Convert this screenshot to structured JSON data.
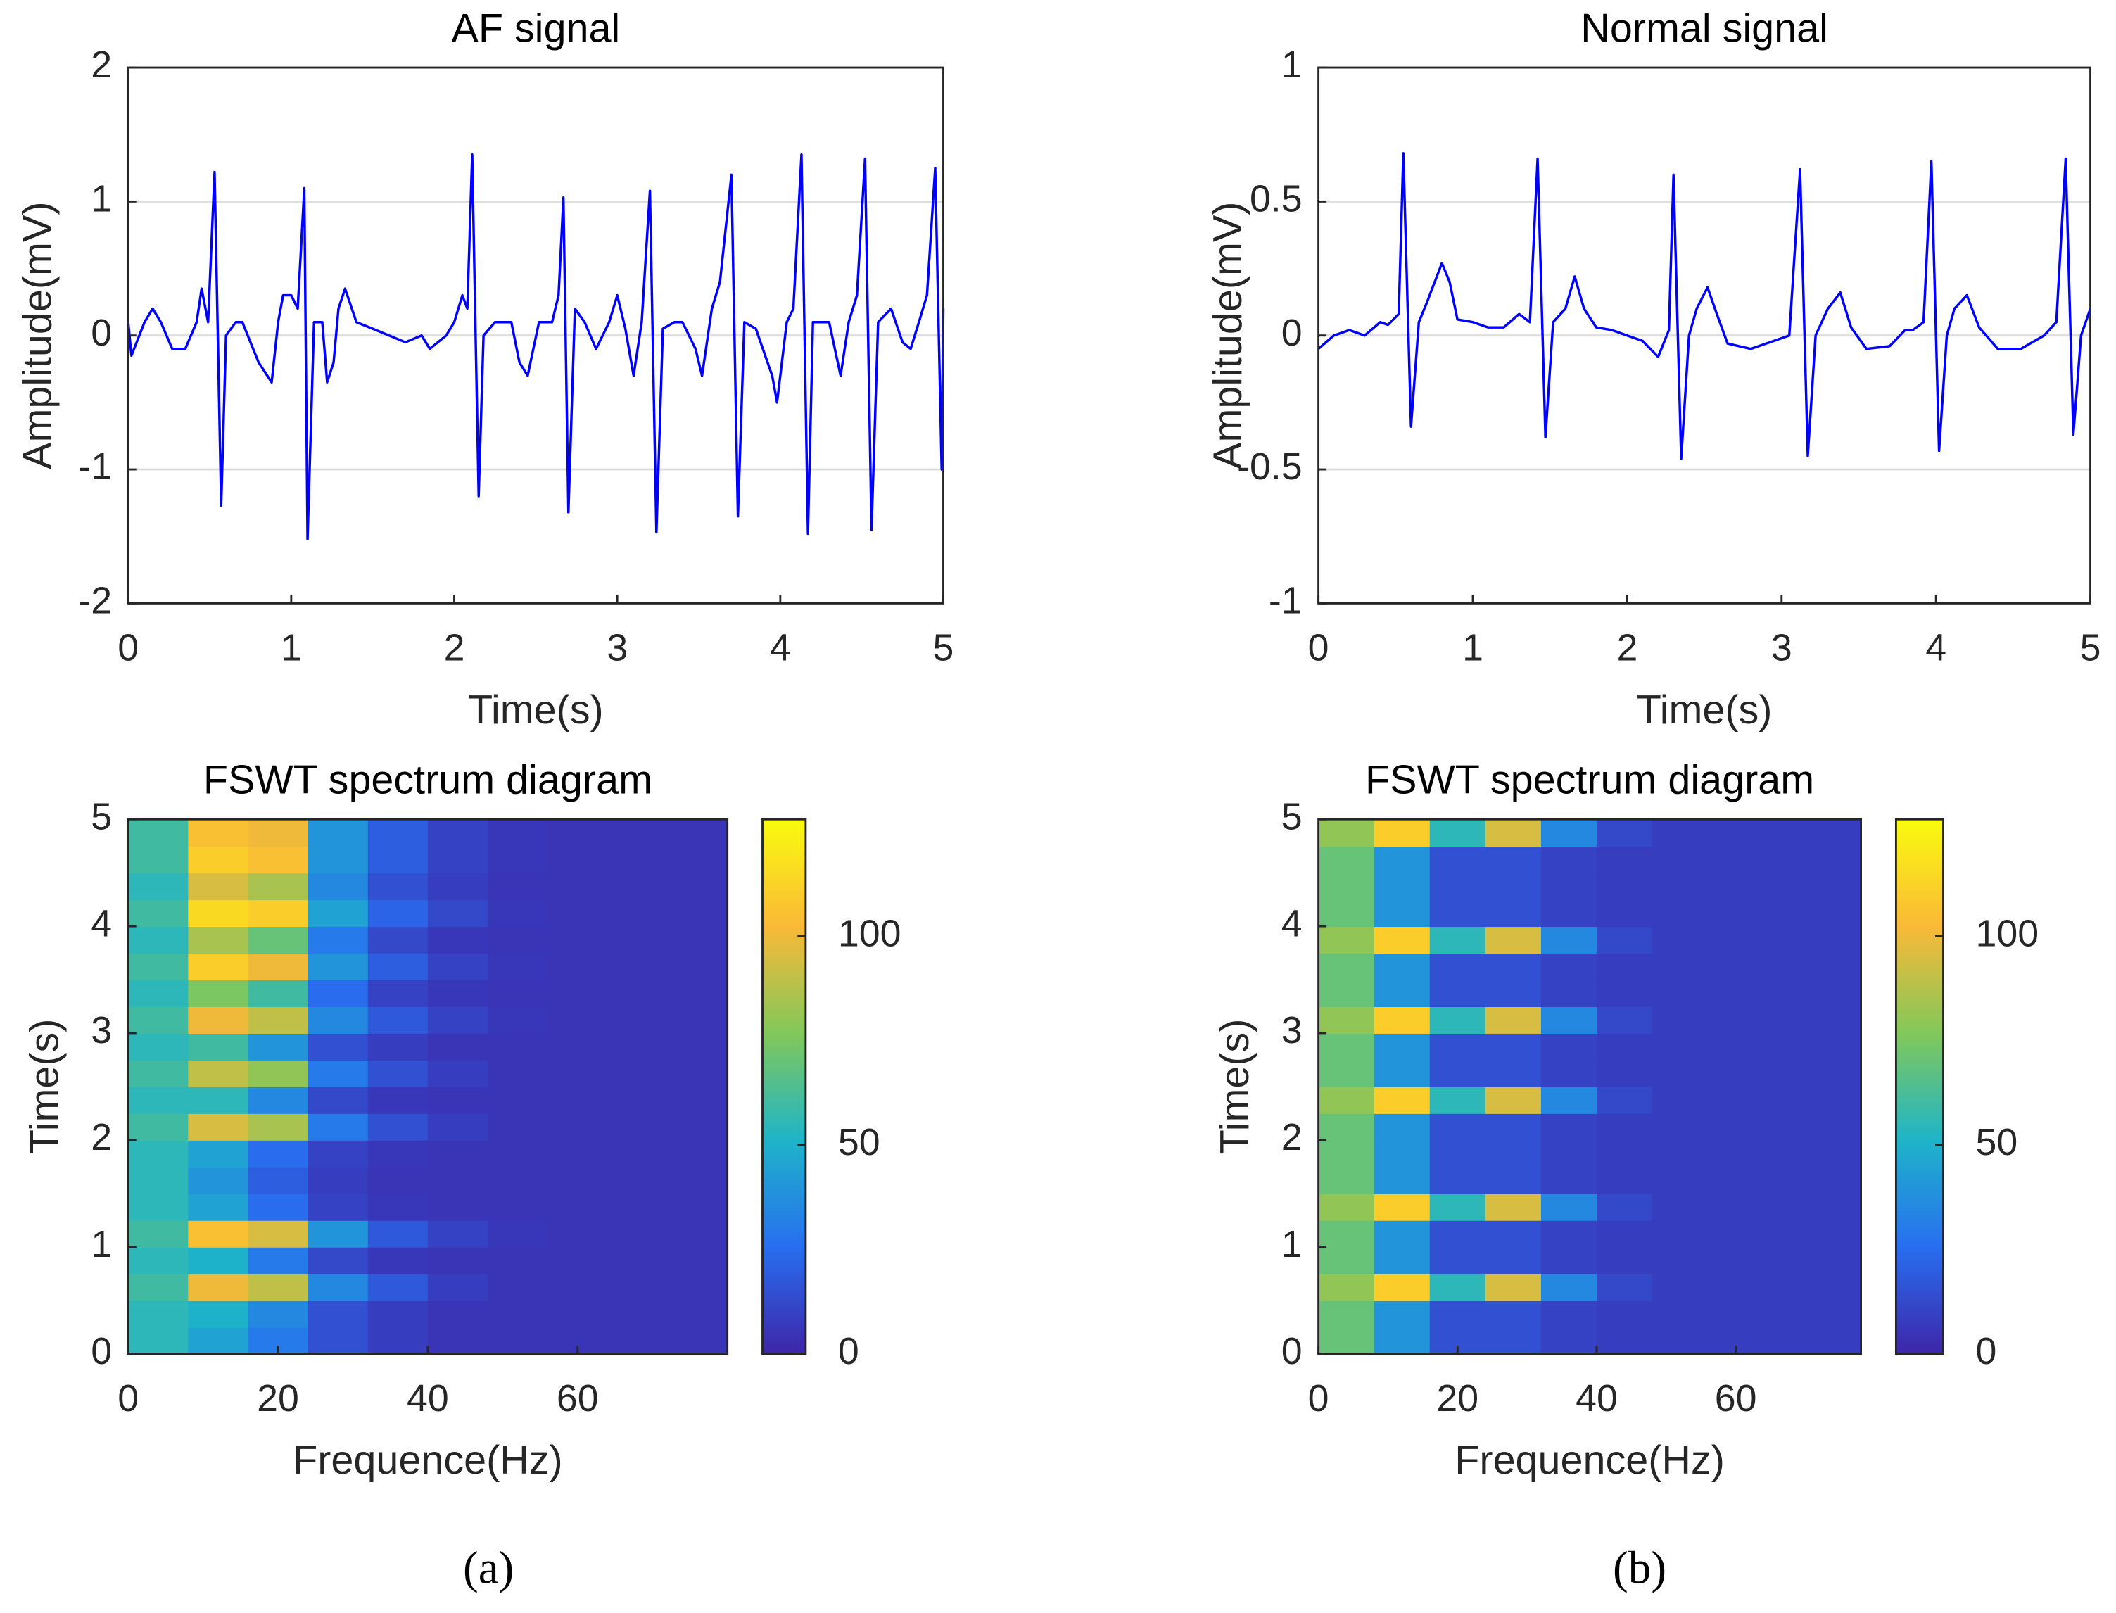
{
  "chart_data": [
    {
      "type": "line",
      "title": "AF signal",
      "xlabel": "Time(s)",
      "ylabel": "Amplitude(mV)",
      "x": [
        0,
        0.02,
        0.1,
        0.15,
        0.2,
        0.27,
        0.35,
        0.42,
        0.45,
        0.49,
        0.53,
        0.57,
        0.6,
        0.66,
        0.7,
        0.8,
        0.88,
        0.92,
        0.95,
        1.0,
        1.04,
        1.08,
        1.1,
        1.14,
        1.19,
        1.22,
        1.26,
        1.29,
        1.33,
        1.4,
        1.5,
        1.6,
        1.7,
        1.8,
        1.85,
        1.95,
        2.0,
        2.05,
        2.08,
        2.11,
        2.15,
        2.18,
        2.25,
        2.35,
        2.4,
        2.45,
        2.52,
        2.6,
        2.64,
        2.67,
        2.7,
        2.74,
        2.8,
        2.87,
        2.95,
        3.0,
        3.05,
        3.1,
        3.15,
        3.2,
        3.24,
        3.28,
        3.35,
        3.4,
        3.48,
        3.52,
        3.58,
        3.63,
        3.7,
        3.74,
        3.78,
        3.85,
        3.95,
        3.98,
        4.04,
        4.08,
        4.13,
        4.17,
        4.2,
        4.3,
        4.37,
        4.42,
        4.47,
        4.52,
        4.56,
        4.6,
        4.68,
        4.75,
        4.8,
        4.85,
        4.9,
        4.95,
        4.99,
        5.0
      ],
      "series": [
        {
          "color": "#0000ff",
          "values": [
            0.1,
            -0.15,
            0.1,
            0.2,
            0.1,
            -0.1,
            -0.1,
            0.1,
            0.35,
            0.1,
            1.22,
            -1.27,
            0,
            0.1,
            0.1,
            -0.2,
            -0.35,
            0.1,
            0.3,
            0.3,
            0.2,
            1.1,
            -1.52,
            0.1,
            0.1,
            -0.35,
            -0.2,
            0.2,
            0.35,
            0.1,
            0.05,
            0,
            -0.05,
            0,
            -0.1,
            0,
            0.1,
            0.3,
            0.2,
            1.35,
            -1.2,
            0,
            0.1,
            0.1,
            -0.2,
            -0.3,
            0.1,
            0.1,
            0.3,
            1.03,
            -1.32,
            0.2,
            0.1,
            -0.1,
            0.1,
            0.3,
            0.05,
            -0.3,
            0.1,
            1.08,
            -1.47,
            0.05,
            0.1,
            0.1,
            -0.1,
            -0.3,
            0.2,
            0.4,
            1.2,
            -1.35,
            0.1,
            0.05,
            -0.3,
            -0.5,
            0.1,
            0.2,
            1.35,
            -1.48,
            0.1,
            0.1,
            -0.3,
            0.1,
            0.3,
            1.32,
            -1.45,
            0.1,
            0.2,
            -0.05,
            -0.1,
            0.1,
            0.3,
            1.25,
            -1.0,
            0.2
          ]
        }
      ],
      "xlim": [
        0,
        5
      ],
      "ylim": [
        -2,
        2
      ],
      "xticks": [
        0,
        1,
        2,
        3,
        4,
        5
      ],
      "yticks": [
        -2,
        -1,
        0,
        1,
        2
      ],
      "grid": true
    },
    {
      "type": "line",
      "title": "Normal signal",
      "xlabel": "Time(s)",
      "ylabel": "Amplitude(mV)",
      "x": [
        0,
        0.1,
        0.2,
        0.3,
        0.4,
        0.45,
        0.52,
        0.55,
        0.6,
        0.65,
        0.7,
        0.8,
        0.85,
        0.9,
        1.0,
        1.1,
        1.2,
        1.3,
        1.37,
        1.42,
        1.47,
        1.52,
        1.6,
        1.66,
        1.72,
        1.8,
        1.9,
        2.0,
        2.1,
        2.2,
        2.27,
        2.3,
        2.35,
        2.4,
        2.45,
        2.52,
        2.58,
        2.65,
        2.8,
        2.95,
        3.05,
        3.12,
        3.17,
        3.22,
        3.3,
        3.38,
        3.45,
        3.55,
        3.7,
        3.8,
        3.85,
        3.92,
        3.97,
        4.02,
        4.07,
        4.12,
        4.2,
        4.28,
        4.4,
        4.55,
        4.7,
        4.78,
        4.84,
        4.89,
        4.94,
        5.0
      ],
      "series": [
        {
          "color": "#0000ff",
          "values": [
            -0.05,
            0,
            0.02,
            0,
            0.05,
            0.04,
            0.08,
            0.68,
            -0.34,
            0.05,
            0.12,
            0.27,
            0.2,
            0.06,
            0.05,
            0.03,
            0.03,
            0.08,
            0.05,
            0.66,
            -0.38,
            0.05,
            0.1,
            0.22,
            0.1,
            0.03,
            0.02,
            0,
            -0.02,
            -0.08,
            0.02,
            0.6,
            -0.46,
            0,
            0.1,
            0.18,
            0.08,
            -0.03,
            -0.05,
            -0.02,
            0,
            0.62,
            -0.45,
            0,
            0.1,
            0.16,
            0.03,
            -0.05,
            -0.04,
            0.02,
            0.02,
            0.05,
            0.65,
            -0.43,
            0,
            0.1,
            0.15,
            0.03,
            -0.05,
            -0.05,
            0,
            0.05,
            0.66,
            -0.37,
            0,
            0.1
          ]
        }
      ],
      "xlim": [
        0,
        5
      ],
      "ylim": [
        -1,
        1
      ],
      "xticks": [
        0,
        1,
        2,
        3,
        4,
        5
      ],
      "yticks": [
        -1,
        -0.5,
        0,
        0.5,
        1
      ],
      "grid": true
    },
    {
      "type": "heatmap",
      "title": "FSWT spectrum diagram",
      "xlabel": "Frequence(Hz)",
      "ylabel": "Time(s)",
      "x_edges": [
        0,
        8,
        16,
        24,
        32,
        40,
        48,
        56,
        64,
        72,
        80
      ],
      "y_edges": [
        0,
        0.25,
        0.5,
        0.75,
        1,
        1.25,
        1.5,
        1.75,
        2,
        2.25,
        2.5,
        2.75,
        3,
        3.25,
        3.5,
        3.75,
        4,
        4.25,
        4.5,
        4.75,
        5
      ],
      "z": [
        [
          55,
          45,
          30,
          15,
          8,
          5,
          5,
          5,
          5,
          5
        ],
        [
          55,
          50,
          35,
          15,
          8,
          5,
          5,
          5,
          5,
          5
        ],
        [
          60,
          100,
          90,
          35,
          18,
          8,
          5,
          5,
          5,
          5
        ],
        [
          55,
          50,
          30,
          12,
          6,
          5,
          5,
          5,
          5,
          5
        ],
        [
          60,
          105,
          95,
          40,
          18,
          10,
          6,
          5,
          5,
          5
        ],
        [
          55,
          45,
          25,
          10,
          6,
          5,
          5,
          5,
          5,
          5
        ],
        [
          55,
          40,
          20,
          8,
          5,
          5,
          5,
          5,
          5,
          5
        ],
        [
          55,
          45,
          25,
          10,
          6,
          5,
          5,
          5,
          5,
          5
        ],
        [
          60,
          95,
          85,
          30,
          15,
          8,
          5,
          5,
          5,
          5
        ],
        [
          55,
          55,
          35,
          12,
          6,
          5,
          5,
          5,
          5,
          5
        ],
        [
          60,
          90,
          80,
          30,
          15,
          8,
          5,
          5,
          5,
          5
        ],
        [
          55,
          60,
          40,
          15,
          8,
          5,
          5,
          5,
          5,
          5
        ],
        [
          60,
          100,
          90,
          35,
          18,
          10,
          6,
          5,
          5,
          5
        ],
        [
          55,
          75,
          60,
          25,
          10,
          6,
          5,
          5,
          5,
          5
        ],
        [
          60,
          110,
          100,
          40,
          20,
          10,
          6,
          5,
          5,
          5
        ],
        [
          55,
          85,
          70,
          30,
          12,
          6,
          5,
          5,
          5,
          5
        ],
        [
          60,
          115,
          110,
          45,
          22,
          12,
          6,
          5,
          5,
          5
        ],
        [
          55,
          95,
          85,
          35,
          15,
          8,
          5,
          5,
          5,
          5
        ],
        [
          60,
          110,
          105,
          40,
          20,
          10,
          6,
          5,
          5,
          5
        ],
        [
          60,
          105,
          100,
          40,
          20,
          10,
          6,
          5,
          5,
          5
        ]
      ],
      "xlim": [
        0,
        80
      ],
      "ylim": [
        0,
        5
      ],
      "xticks": [
        0,
        20,
        40,
        60
      ],
      "yticks": [
        0,
        1,
        2,
        3,
        4,
        5
      ],
      "colorbar": {
        "lim": [
          0,
          128
        ],
        "ticks": [
          0,
          50,
          100
        ]
      },
      "colormap": [
        "#3e26a8",
        "#286ef0",
        "#1eb4c8",
        "#82c85a",
        "#fab937",
        "#f9fb0e"
      ]
    },
    {
      "type": "heatmap",
      "title": "FSWT spectrum diagram",
      "xlabel": "Frequence(Hz)",
      "ylabel": "Time(s)",
      "x_edges": [
        0,
        8,
        16,
        24,
        32,
        40,
        48,
        56,
        64,
        72,
        78
      ],
      "y_edges": [
        0,
        0.25,
        0.5,
        0.75,
        1,
        1.25,
        1.5,
        1.75,
        2,
        2.25,
        2.5,
        2.75,
        3,
        3.25,
        3.5,
        3.75,
        4,
        4.25,
        4.5,
        4.75,
        5
      ],
      "z": [
        [
          70,
          40,
          15,
          15,
          10,
          8,
          8,
          8,
          8,
          8
        ],
        [
          70,
          40,
          15,
          15,
          10,
          8,
          8,
          8,
          8,
          8
        ],
        [
          80,
          110,
          55,
          95,
          35,
          12,
          8,
          8,
          8,
          8
        ],
        [
          70,
          40,
          15,
          15,
          10,
          8,
          8,
          8,
          8,
          8
        ],
        [
          70,
          40,
          15,
          15,
          10,
          8,
          8,
          8,
          8,
          8
        ],
        [
          80,
          110,
          55,
          95,
          35,
          12,
          8,
          8,
          8,
          8
        ],
        [
          70,
          40,
          15,
          15,
          10,
          8,
          8,
          8,
          8,
          8
        ],
        [
          70,
          40,
          15,
          15,
          10,
          8,
          8,
          8,
          8,
          8
        ],
        [
          70,
          40,
          15,
          15,
          10,
          8,
          8,
          8,
          8,
          8
        ],
        [
          80,
          110,
          55,
          95,
          35,
          12,
          8,
          8,
          8,
          8
        ],
        [
          70,
          40,
          15,
          15,
          10,
          8,
          8,
          8,
          8,
          8
        ],
        [
          70,
          40,
          15,
          15,
          10,
          8,
          8,
          8,
          8,
          8
        ],
        [
          80,
          110,
          55,
          95,
          35,
          12,
          8,
          8,
          8,
          8
        ],
        [
          70,
          40,
          15,
          15,
          10,
          8,
          8,
          8,
          8,
          8
        ],
        [
          70,
          40,
          15,
          15,
          10,
          8,
          8,
          8,
          8,
          8
        ],
        [
          80,
          110,
          55,
          95,
          35,
          12,
          8,
          8,
          8,
          8
        ],
        [
          70,
          40,
          15,
          15,
          10,
          8,
          8,
          8,
          8,
          8
        ],
        [
          70,
          40,
          15,
          15,
          10,
          8,
          8,
          8,
          8,
          8
        ],
        [
          70,
          40,
          15,
          15,
          10,
          8,
          8,
          8,
          8,
          8
        ],
        [
          80,
          110,
          55,
          95,
          35,
          12,
          8,
          8,
          8,
          8
        ]
      ],
      "xlim": [
        0,
        78
      ],
      "ylim": [
        0,
        5
      ],
      "xticks": [
        0,
        20,
        40,
        60
      ],
      "yticks": [
        0,
        1,
        2,
        3,
        4,
        5
      ],
      "colorbar": {
        "lim": [
          0,
          128
        ],
        "ticks": [
          0,
          50,
          100
        ]
      },
      "colormap": [
        "#3e26a8",
        "#286ef0",
        "#1eb4c8",
        "#82c85a",
        "#fab937",
        "#f9fb0e"
      ]
    }
  ],
  "captions": [
    "(a)",
    "(b)"
  ]
}
